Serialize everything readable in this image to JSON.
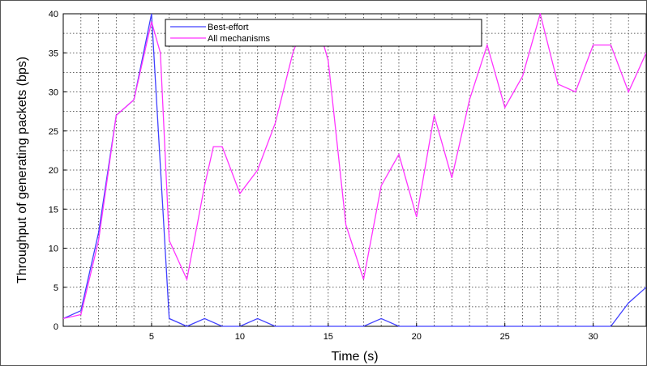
{
  "chart_data": {
    "type": "line",
    "xlabel": "Time (s)",
    "ylabel": "Throughput of generating packets (bps)",
    "xlim": [
      0,
      33
    ],
    "ylim": [
      0,
      40
    ],
    "xticks": [
      5,
      10,
      15,
      20,
      25,
      30
    ],
    "yticks": [
      0,
      5,
      10,
      15,
      20,
      25,
      30,
      35,
      40
    ],
    "grid": true,
    "legend_position": "top-right",
    "series": [
      {
        "name": "Best-effort",
        "color": "#4040ff",
        "x": [
          0,
          1,
          2,
          3,
          4,
          5,
          6,
          7,
          8,
          9,
          10,
          11,
          12,
          13,
          14,
          15,
          16,
          17,
          18,
          19,
          20,
          21,
          22,
          23,
          24,
          25,
          26,
          27,
          28,
          29,
          30,
          31,
          32,
          33
        ],
        "y": [
          1,
          2,
          12,
          27,
          29,
          40,
          1,
          0,
          1,
          0,
          0,
          1,
          0,
          0,
          0,
          0,
          0,
          0,
          1,
          0,
          0,
          0,
          0,
          0,
          0,
          0,
          0,
          0,
          0,
          0,
          0,
          0,
          3,
          5
        ]
      },
      {
        "name": "All mechanisms",
        "color": "#ff33ff",
        "x": [
          0,
          1,
          2,
          3,
          4,
          5,
          5.5,
          6,
          7,
          8,
          8.5,
          9,
          10,
          11,
          12,
          13,
          13.5,
          14,
          14.5,
          15,
          16,
          17,
          18,
          19,
          20,
          21,
          22,
          23,
          24,
          25,
          26,
          27,
          28,
          29,
          30,
          31,
          32,
          33
        ],
        "y": [
          1,
          1.5,
          11,
          27,
          29,
          39,
          35,
          11,
          6,
          18,
          23,
          23,
          17,
          20,
          26,
          35,
          38,
          38,
          38,
          34,
          13,
          6,
          18,
          22,
          14,
          27,
          19,
          29,
          36,
          28,
          32,
          40,
          31,
          30,
          36,
          36,
          30,
          35
        ]
      }
    ]
  }
}
